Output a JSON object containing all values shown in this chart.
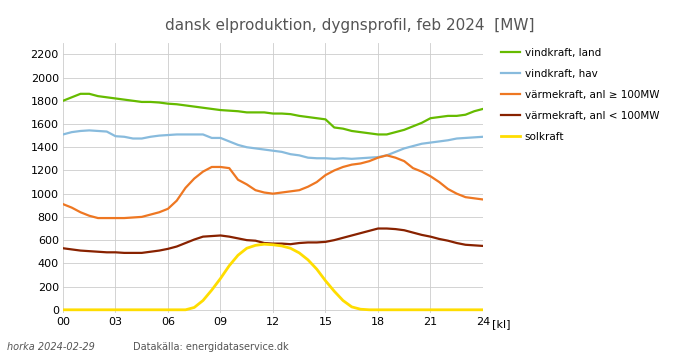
{
  "title": "dansk elproduktion, dygnsprofil, feb 2024  [MW]",
  "xlabel": "[kl]",
  "xlim": [
    0,
    24
  ],
  "ylim": [
    -30,
    2300
  ],
  "yticks": [
    0,
    200,
    400,
    600,
    800,
    1000,
    1200,
    1400,
    1600,
    1800,
    2000,
    2200
  ],
  "xtick_labels": [
    "00",
    "03",
    "06",
    "09",
    "12",
    "15",
    "18",
    "21",
    "24"
  ],
  "xtick_positions": [
    0,
    3,
    6,
    9,
    12,
    15,
    18,
    21,
    24
  ],
  "footer_left": "horka 2024-02-29",
  "footer_right": "Datakälla: energidataservice.dk",
  "background_color": "#ffffff",
  "grid_color": "#cccccc",
  "series": {
    "vindkraft_land": {
      "label": "vindkraft, land",
      "color": "#66bb00",
      "linewidth": 1.6,
      "x": [
        0,
        0.5,
        1,
        1.5,
        2,
        2.5,
        3,
        3.5,
        4,
        4.5,
        5,
        5.5,
        6,
        6.5,
        7,
        7.5,
        8,
        8.5,
        9,
        9.5,
        10,
        10.5,
        11,
        11.5,
        12,
        12.5,
        13,
        13.5,
        14,
        14.5,
        15,
        15.5,
        16,
        16.5,
        17,
        17.5,
        18,
        18.5,
        19,
        19.5,
        20,
        20.5,
        21,
        21.5,
        22,
        22.5,
        23,
        23.5,
        24
      ],
      "y": [
        1800,
        1830,
        1860,
        1860,
        1840,
        1830,
        1820,
        1810,
        1800,
        1790,
        1790,
        1785,
        1775,
        1770,
        1760,
        1750,
        1740,
        1730,
        1720,
        1715,
        1710,
        1700,
        1700,
        1700,
        1690,
        1690,
        1685,
        1670,
        1660,
        1650,
        1640,
        1570,
        1560,
        1540,
        1530,
        1520,
        1510,
        1510,
        1530,
        1550,
        1580,
        1610,
        1650,
        1660,
        1670,
        1670,
        1680,
        1710,
        1730
      ]
    },
    "vindkraft_hav": {
      "label": "vindkraft, hav",
      "color": "#88bbdd",
      "linewidth": 1.6,
      "x": [
        0,
        0.5,
        1,
        1.5,
        2,
        2.5,
        3,
        3.5,
        4,
        4.5,
        5,
        5.5,
        6,
        6.5,
        7,
        7.5,
        8,
        8.5,
        9,
        9.5,
        10,
        10.5,
        11,
        11.5,
        12,
        12.5,
        13,
        13.5,
        14,
        14.5,
        15,
        15.5,
        16,
        16.5,
        17,
        17.5,
        18,
        18.5,
        19,
        19.5,
        20,
        20.5,
        21,
        21.5,
        22,
        22.5,
        23,
        23.5,
        24
      ],
      "y": [
        1510,
        1530,
        1540,
        1545,
        1540,
        1535,
        1495,
        1490,
        1475,
        1475,
        1490,
        1500,
        1505,
        1510,
        1510,
        1510,
        1510,
        1480,
        1480,
        1450,
        1420,
        1400,
        1390,
        1380,
        1370,
        1360,
        1340,
        1330,
        1310,
        1305,
        1305,
        1300,
        1305,
        1300,
        1305,
        1310,
        1315,
        1330,
        1360,
        1390,
        1410,
        1430,
        1440,
        1450,
        1460,
        1475,
        1480,
        1485,
        1490
      ]
    },
    "varmekraft_stor": {
      "label": "värmekraft, anl ≥ 100MW",
      "color": "#ee7722",
      "linewidth": 1.6,
      "x": [
        0,
        0.5,
        1,
        1.5,
        2,
        2.5,
        3,
        3.5,
        4,
        4.5,
        5,
        5.5,
        6,
        6.5,
        7,
        7.5,
        8,
        8.5,
        9,
        9.5,
        10,
        10.5,
        11,
        11.5,
        12,
        12.5,
        13,
        13.5,
        14,
        14.5,
        15,
        15.5,
        16,
        16.5,
        17,
        17.5,
        18,
        18.5,
        19,
        19.5,
        20,
        20.5,
        21,
        21.5,
        22,
        22.5,
        23,
        23.5,
        24
      ],
      "y": [
        910,
        880,
        840,
        810,
        790,
        790,
        790,
        790,
        795,
        800,
        820,
        840,
        870,
        940,
        1050,
        1130,
        1190,
        1230,
        1230,
        1220,
        1120,
        1080,
        1030,
        1010,
        1000,
        1010,
        1020,
        1030,
        1060,
        1100,
        1160,
        1200,
        1230,
        1250,
        1260,
        1280,
        1310,
        1330,
        1310,
        1280,
        1220,
        1190,
        1150,
        1100,
        1040,
        1000,
        970,
        960,
        950
      ]
    },
    "varmekraft_liten": {
      "label": "värmekraft, anl < 100MW",
      "color": "#882200",
      "linewidth": 1.6,
      "x": [
        0,
        0.5,
        1,
        1.5,
        2,
        2.5,
        3,
        3.5,
        4,
        4.5,
        5,
        5.5,
        6,
        6.5,
        7,
        7.5,
        8,
        8.5,
        9,
        9.5,
        10,
        10.5,
        11,
        11.5,
        12,
        12.5,
        13,
        13.5,
        14,
        14.5,
        15,
        15.5,
        16,
        16.5,
        17,
        17.5,
        18,
        18.5,
        19,
        19.5,
        20,
        20.5,
        21,
        21.5,
        22,
        22.5,
        23,
        23.5,
        24
      ],
      "y": [
        530,
        520,
        510,
        505,
        500,
        495,
        495,
        490,
        490,
        490,
        500,
        510,
        525,
        545,
        575,
        605,
        630,
        635,
        640,
        630,
        615,
        600,
        595,
        575,
        570,
        570,
        565,
        575,
        580,
        580,
        585,
        600,
        620,
        640,
        660,
        680,
        700,
        700,
        695,
        685,
        665,
        645,
        630,
        610,
        595,
        575,
        560,
        555,
        550
      ]
    },
    "solkraft": {
      "label": "solkraft",
      "color": "#ffdd00",
      "linewidth": 2.0,
      "x": [
        0,
        0.5,
        1,
        1.5,
        2,
        2.5,
        3,
        3.5,
        4,
        4.5,
        5,
        5.5,
        6,
        6.5,
        7,
        7.5,
        8,
        8.5,
        9,
        9.5,
        10,
        10.5,
        11,
        11.5,
        12,
        12.5,
        13,
        13.5,
        14,
        14.5,
        15,
        15.5,
        16,
        16.5,
        17,
        17.5,
        18,
        18.5,
        19,
        19.5,
        20,
        20.5,
        21,
        21.5,
        22,
        22.5,
        23,
        23.5,
        24
      ],
      "y": [
        0,
        0,
        0,
        0,
        0,
        0,
        0,
        0,
        0,
        0,
        0,
        0,
        0,
        0,
        0,
        20,
        80,
        170,
        270,
        380,
        470,
        530,
        555,
        565,
        560,
        550,
        530,
        490,
        430,
        350,
        250,
        160,
        80,
        25,
        5,
        0,
        0,
        0,
        0,
        0,
        0,
        0,
        0,
        0,
        0,
        0,
        0,
        0,
        0
      ]
    }
  }
}
